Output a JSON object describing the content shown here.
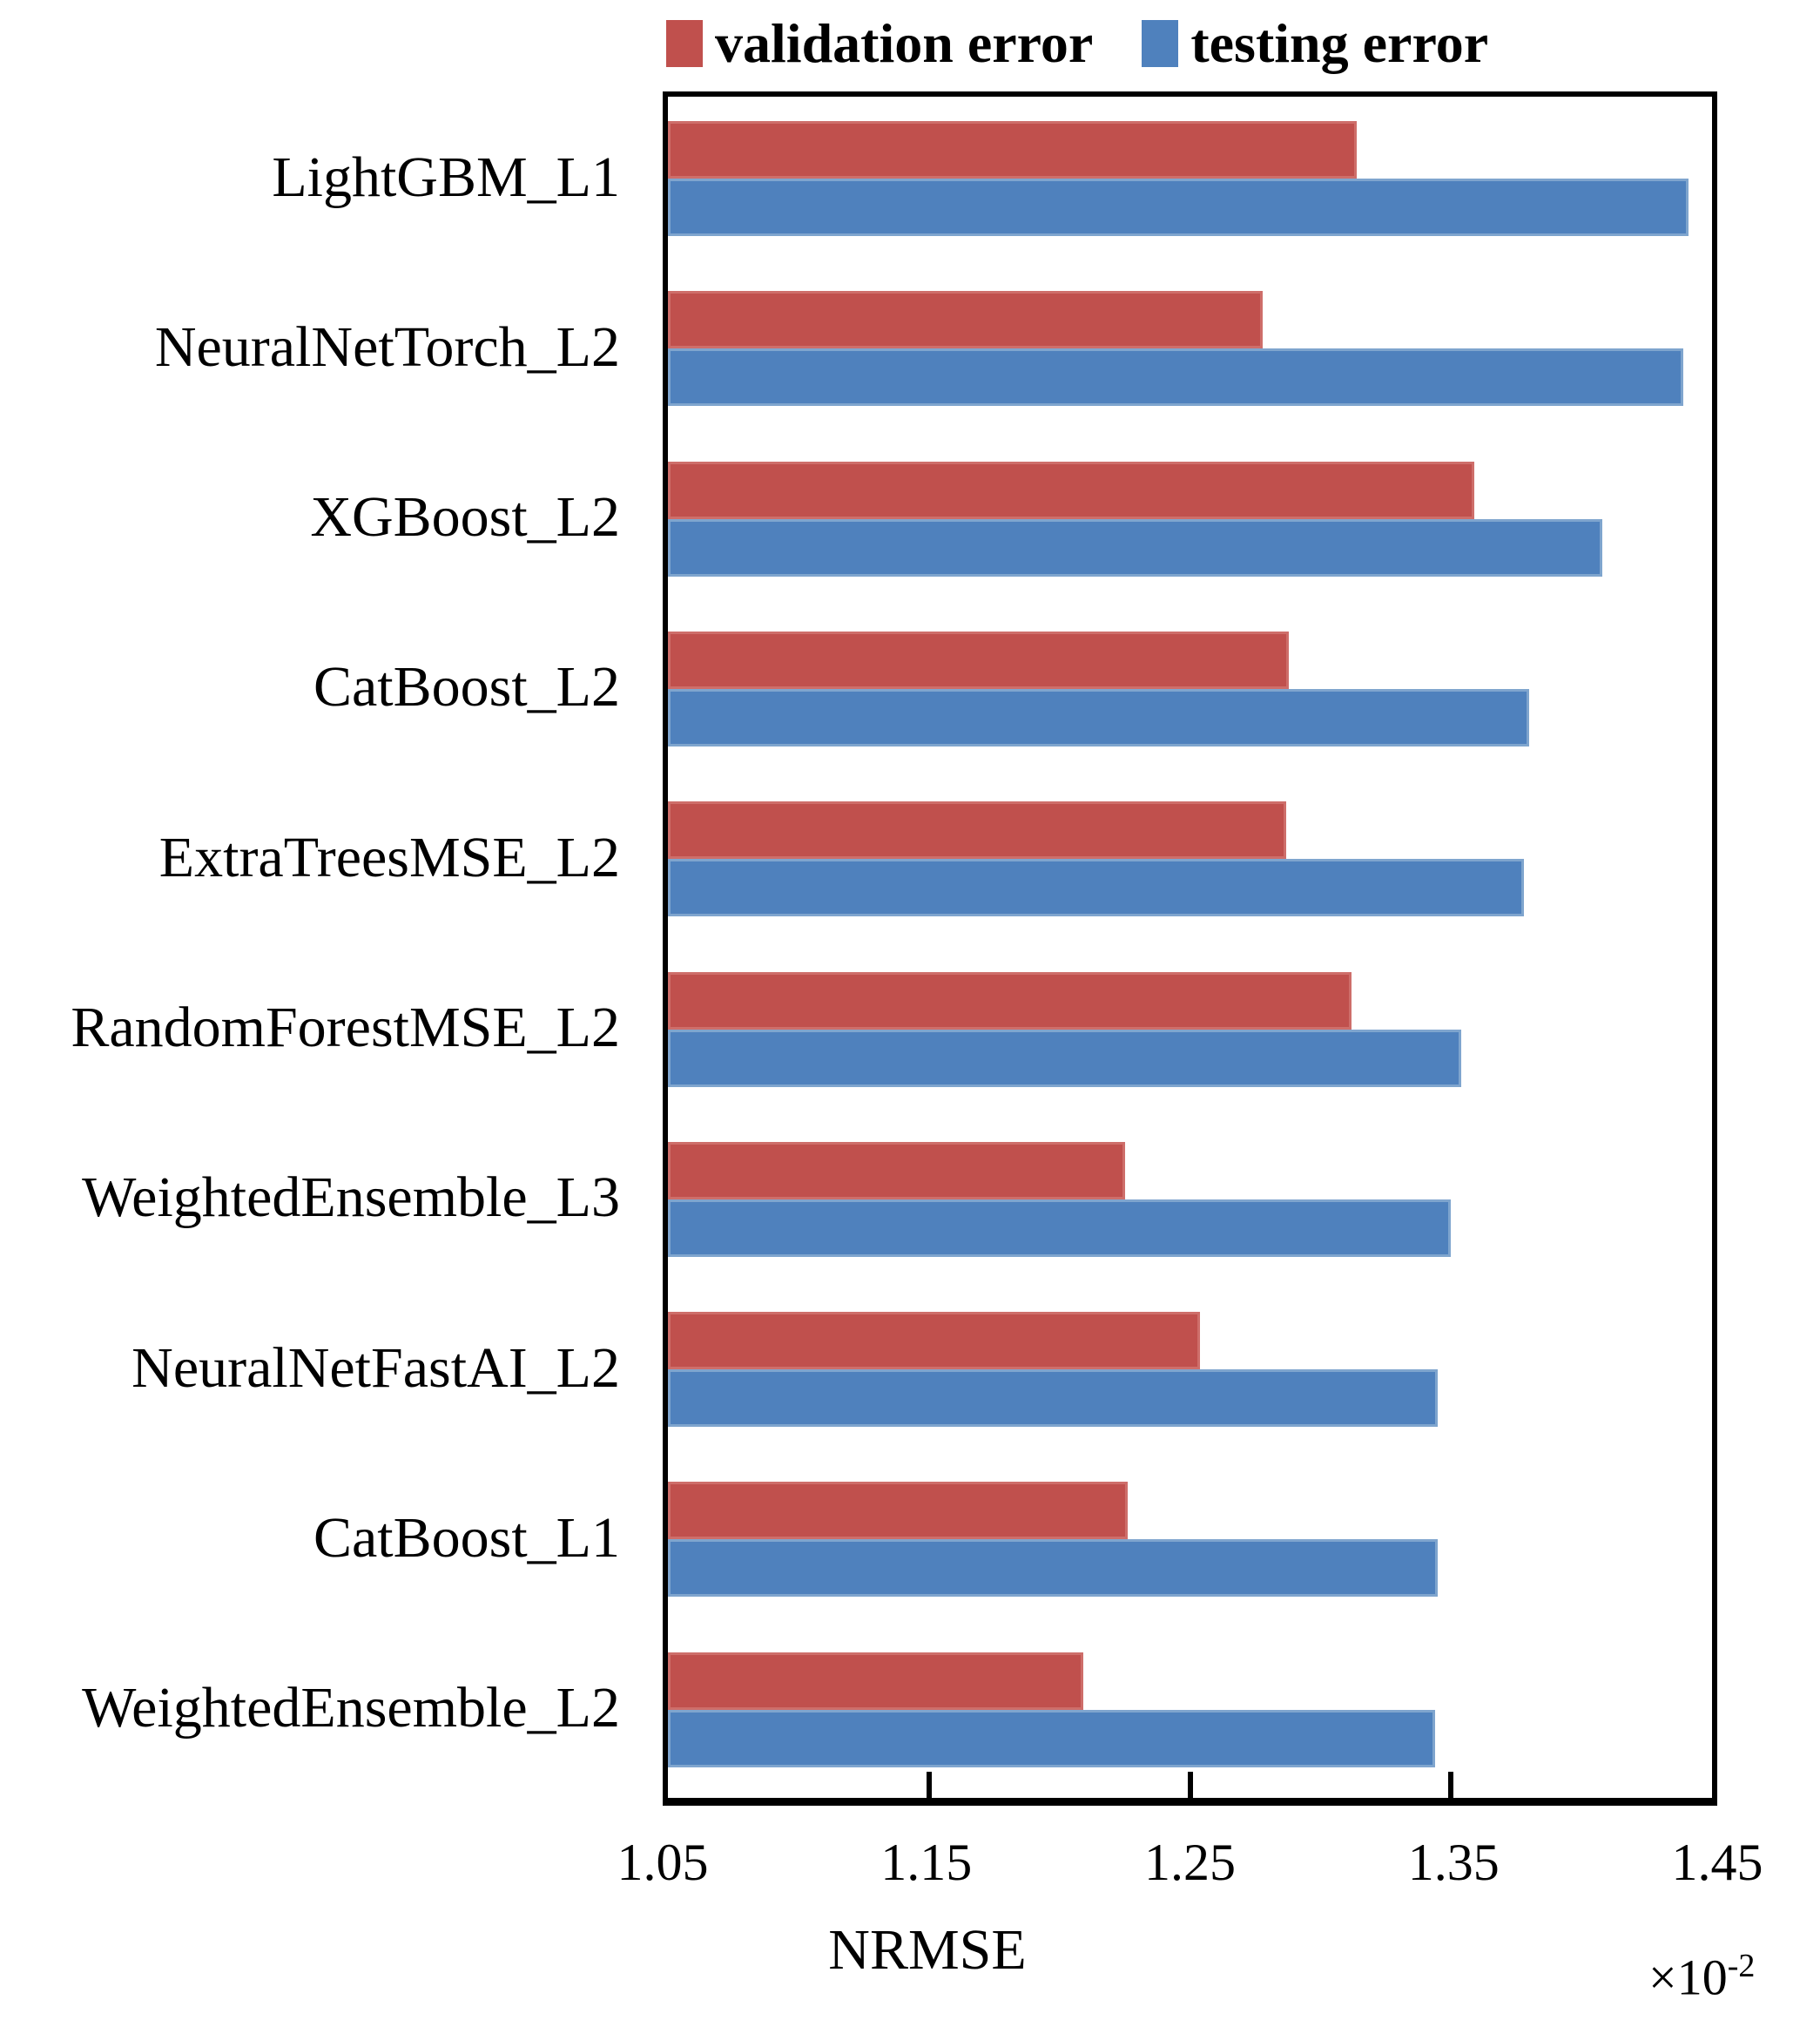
{
  "chart_data": {
    "type": "bar",
    "orientation": "horizontal",
    "title": "",
    "categories": [
      "LightGBM_L1",
      "NeuralNetTorch_L2",
      "XGBoost_L2",
      "CatBoost_L2",
      "ExtraTreesMSE_L2",
      "RandomForestMSE_L2",
      "WeightedEnsemble_L3",
      "NeuralNetFastAI_L2",
      "CatBoost_L1",
      "WeightedEnsemble_L2"
    ],
    "series": [
      {
        "name": "validation error",
        "color": "#C0504D",
        "values": [
          1.314,
          1.278,
          1.359,
          1.288,
          1.287,
          1.312,
          1.225,
          1.254,
          1.226,
          1.209
        ]
      },
      {
        "name": "testing error",
        "color": "#4F81BD",
        "values": [
          1.441,
          1.439,
          1.408,
          1.38,
          1.378,
          1.354,
          1.35,
          1.345,
          1.345,
          1.344
        ]
      }
    ],
    "xlabel": "NRMSE",
    "x_mult_base": "×10",
    "x_mult_exp": "-2",
    "value_unit_multiplier": "1e-2",
    "xlim": [
      1.05,
      1.45
    ],
    "xticks": [
      "1.05",
      "1.15",
      "1.25",
      "1.35",
      "1.45"
    ],
    "grid": false,
    "legend_position": "top-center",
    "axis_color": "#000000",
    "background_color": "#FFFFFF"
  }
}
